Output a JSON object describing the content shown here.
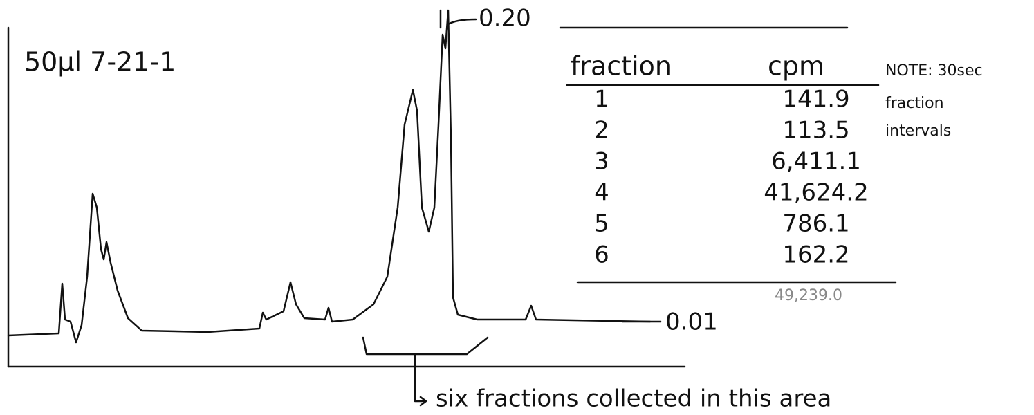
{
  "sample_label": "50µl 7-21-1",
  "scale_top": "0.20",
  "scale_baseline": "0.01",
  "table": {
    "header": [
      "fraction",
      "cpm"
    ],
    "rows": [
      [
        "1",
        "141.9"
      ],
      [
        "2",
        "113.5"
      ],
      [
        "3",
        "6,411.1"
      ],
      [
        "4",
        "41,624.2"
      ],
      [
        "5",
        "786.1"
      ],
      [
        "6",
        "162.2"
      ]
    ],
    "total": "49,239.0"
  },
  "note": [
    "NOTE: 30sec",
    "fraction",
    "intervals"
  ],
  "annotation": "six fractions collected in this area"
}
